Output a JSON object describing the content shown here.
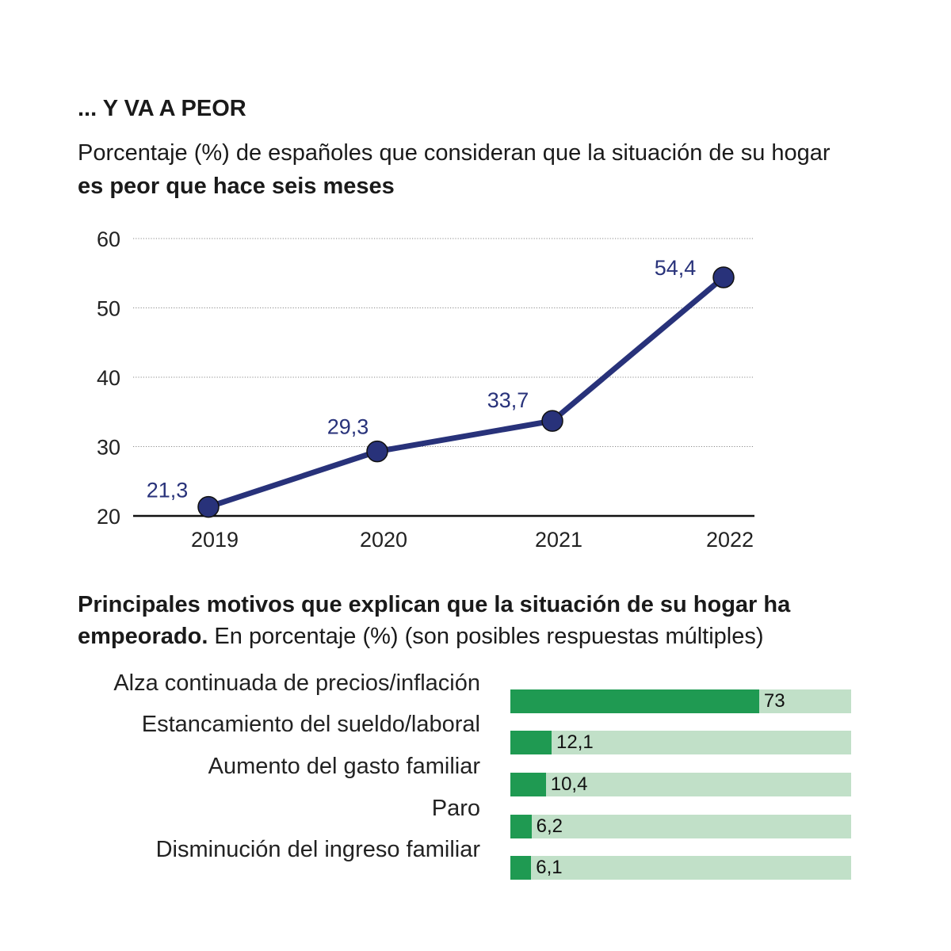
{
  "title": "... Y VA A PEOR",
  "subtitle_normal": "Porcentaje (%) de españoles que consideran que la situación de su hogar",
  "subtitle_bold": "es peor que hace seis meses",
  "bars_title_bold": "Principales motivos que explican que la situación de su hogar ha empeorado.",
  "bars_title_normal": " En porcentaje (%) (son posibles respuestas múltiples)",
  "colors": {
    "line": "#28327a",
    "bar_fill": "#1f9a52",
    "bar_track": "#c1e0c8"
  },
  "chart_data": [
    {
      "type": "line",
      "x": [
        "2019",
        "2020",
        "2021",
        "2022"
      ],
      "values": [
        21.3,
        29.3,
        33.7,
        54.4
      ],
      "data_labels": [
        "21,3",
        "29,3",
        "33,7",
        "54,4"
      ],
      "y_ticks": [
        20,
        30,
        40,
        50,
        60
      ],
      "ylim": [
        20,
        60
      ],
      "grid": true
    },
    {
      "type": "bar",
      "orientation": "horizontal",
      "categories": [
        "Alza continuada de precios/inflación",
        "Estancamiento del sueldo/laboral",
        "Aumento del gasto familiar",
        "Paro",
        "Disminución del ingreso familiar"
      ],
      "values": [
        73,
        12.1,
        10.4,
        6.2,
        6.1
      ],
      "data_labels": [
        "73",
        "12,1",
        "10,4",
        "6,2",
        "6,1"
      ],
      "xlim": [
        0,
        100
      ]
    }
  ]
}
